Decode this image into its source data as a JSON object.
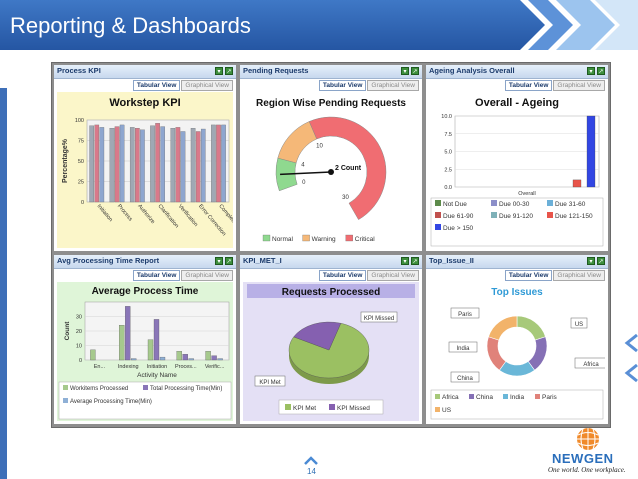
{
  "slide": {
    "title": "Reporting & Dashboards",
    "page_number": "14",
    "brand": "NEWGEN",
    "tagline": "One world. One workplace."
  },
  "colors": {
    "title_bar": "#2f66b3",
    "title_chevron": "#5a8fd6",
    "panel_header": "#c7d8ee",
    "accent_green": "#3d8f3d"
  },
  "panels": [
    {
      "title": "Process KPI",
      "tabs": [
        "Tabular View",
        "Graphical View"
      ],
      "active_tab": "Tabular View",
      "icons": [
        "collapse-icon",
        "popout-icon"
      ]
    },
    {
      "title": "Pending Requests",
      "tabs": [
        "Tabular View",
        "Graphical View"
      ],
      "active_tab": "Tabular View",
      "icons": [
        "collapse-icon",
        "popout-icon"
      ]
    },
    {
      "title": "Ageing Analysis Overall",
      "tabs": [
        "Tabular View",
        "Graphical View"
      ],
      "active_tab": "Tabular View",
      "icons": [
        "collapse-icon",
        "popout-icon"
      ]
    },
    {
      "title": "Avg Processing Time Report",
      "tabs": [
        "Tabular View",
        "Graphical View"
      ],
      "active_tab": "Tabular View",
      "icons": [
        "collapse-icon",
        "popout-icon"
      ]
    },
    {
      "title": "KPI_MET_I",
      "tabs": [
        "Tabular View",
        "Graphical View"
      ],
      "active_tab": "Tabular View",
      "icons": [
        "collapse-icon",
        "popout-icon"
      ]
    },
    {
      "title": "Top_Issue_II",
      "tabs": [
        "Tabular View",
        "Graphical View"
      ],
      "active_tab": "Tabular View",
      "icons": [
        "collapse-icon",
        "popout-icon"
      ]
    }
  ],
  "chart_data": [
    {
      "type": "bar",
      "title": "Workstep KPI",
      "ylabel": "Percentage%",
      "xlabel": "",
      "ylim": [
        0,
        100
      ],
      "yticks": [
        0,
        25,
        50,
        75,
        100
      ],
      "categories": [
        "Initiation",
        "Process",
        "Authorize",
        "Clarification",
        "Verification",
        "Error Correction",
        "Complete"
      ],
      "series": [
        {
          "color": "#9fa8b4",
          "values": [
            93,
            90,
            91,
            93,
            90,
            90,
            94
          ]
        },
        {
          "color": "#d9798a",
          "values": [
            94,
            92,
            90,
            96,
            91,
            86,
            94
          ]
        },
        {
          "color": "#8ea6cf",
          "values": [
            91,
            94,
            88,
            92,
            86,
            89,
            94
          ]
        }
      ],
      "grid": true
    },
    {
      "type": "gauge",
      "title": "Region Wise Pending Requests",
      "ticks": [
        "0",
        "4",
        "10",
        "30"
      ],
      "value_label": "2 Count",
      "value": 2,
      "bands": [
        {
          "name": "Normal",
          "color": "#8fd98f",
          "from": 0,
          "to": 4
        },
        {
          "name": "Warning",
          "color": "#f5b878",
          "from": 4,
          "to": 10
        },
        {
          "name": "Critical",
          "color": "#f06d72",
          "from": 10,
          "to": 30
        }
      ],
      "legend": [
        "Normal",
        "Warning",
        "Critical"
      ]
    },
    {
      "type": "bar",
      "title": "Overall  - Ageing",
      "xlabel": "Overall",
      "ylim": [
        0,
        10
      ],
      "yticks": [
        "0.0",
        "2.5",
        "5.0",
        "7.5",
        "10.0"
      ],
      "series": [
        {
          "name": "Not Due",
          "color": "#5c8a4a",
          "value": 0
        },
        {
          "name": "Due 00-30",
          "color": "#8c8fc9",
          "value": 0
        },
        {
          "name": "Due 31-60",
          "color": "#6cb0d8",
          "value": 0
        },
        {
          "name": "Due 61-90",
          "color": "#c0504d",
          "value": 0
        },
        {
          "name": "Due 91-120",
          "color": "#7fb1b8",
          "value": 0
        },
        {
          "name": "Due 121-150",
          "color": "#e8544a",
          "value": 1
        },
        {
          "name": "Due > 150",
          "color": "#3246e3",
          "value": 10
        }
      ],
      "legend_position": "bottom"
    },
    {
      "type": "bar",
      "title": "Average Process Time",
      "xlabel": "Activity Name",
      "ylabel": "Count",
      "ylim": [
        0,
        40
      ],
      "yticks": [
        0,
        10,
        20,
        30
      ],
      "categories": [
        "En...",
        "Indexing",
        "Initiation",
        "Proces...",
        "Verific..."
      ],
      "series": [
        {
          "name": "Workitems Processed",
          "color": "#a6c98d",
          "values": [
            7,
            24,
            14,
            6,
            6
          ]
        },
        {
          "name": "Total Processing Time(Min)",
          "color": "#8a76b8",
          "values": [
            0,
            37,
            28,
            4,
            3
          ]
        },
        {
          "name": "Average Processing Time(Min)",
          "color": "#8fb0d6",
          "values": [
            0,
            1,
            2,
            1,
            1
          ]
        }
      ],
      "legend_position": "bottom"
    },
    {
      "type": "pie",
      "title": "Requests Processed",
      "slices": [
        {
          "name": "KPI Met",
          "color": "#9bc062",
          "value": 78
        },
        {
          "name": "KPI Missed",
          "color": "#8560b0",
          "value": 22
        }
      ],
      "labels": [
        "KPI Missed",
        "KPI Met"
      ],
      "legend": [
        "KPI Met",
        "KPI Missed"
      ]
    },
    {
      "type": "pie",
      "title": "Top Issues",
      "donut": true,
      "slices": [
        {
          "name": "Africa",
          "color": "#a7c97a",
          "value": 20
        },
        {
          "name": "China",
          "color": "#8570b5",
          "value": 20
        },
        {
          "name": "India",
          "color": "#6ab7d8",
          "value": 20
        },
        {
          "name": "Paris",
          "color": "#e0827a",
          "value": 20
        },
        {
          "name": "US",
          "color": "#f2b36a",
          "value": 20
        }
      ],
      "labels": [
        "Paris",
        "US",
        "India",
        "Africa",
        "China"
      ],
      "legend": [
        "Africa",
        "China",
        "India",
        "Paris",
        "US"
      ]
    }
  ]
}
